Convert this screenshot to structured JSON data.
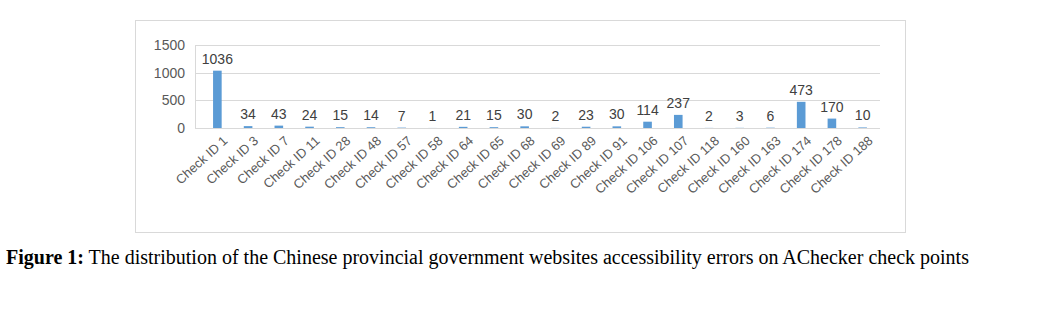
{
  "chart_data": {
    "type": "bar",
    "title": "Figure 1: The distribution of the Chinese provincial government websites accessibility errors on AChecker check points",
    "categories": [
      "Check ID 1",
      "Check ID 3",
      "Check ID 7",
      "Check ID 11",
      "Check ID 28",
      "Check ID 48",
      "Check ID 57",
      "Check ID 58",
      "Check ID 64",
      "Check ID 65",
      "Check ID 68",
      "Check ID 69",
      "Check ID 89",
      "Check ID 91",
      "Check ID 106",
      "Check ID 107",
      "Check ID 118",
      "Check ID 160",
      "Check ID 163",
      "Check ID 174",
      "Check ID 178",
      "Check ID 188"
    ],
    "values": [
      1036,
      34,
      43,
      24,
      15,
      14,
      7,
      1,
      21,
      15,
      30,
      2,
      23,
      30,
      114,
      237,
      2,
      3,
      6,
      473,
      170,
      10
    ],
    "color": "#5b9bd5",
    "ylim": [
      0,
      1500
    ],
    "yticks": [
      0,
      500,
      1000,
      1500
    ],
    "grid": true,
    "data_labels": true
  }
}
